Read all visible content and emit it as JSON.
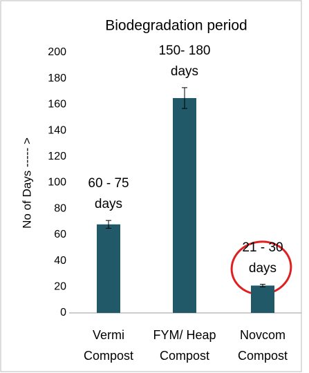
{
  "chart_data": {
    "type": "bar",
    "title": "Biodegradation period",
    "y_label": "No of Days ----- >",
    "categories": [
      "Vermi\nCompost",
      "FYM/ Heap\nCompost",
      "Novcom\nCompost"
    ],
    "values": [
      68,
      165,
      21
    ],
    "errors": [
      3,
      8,
      1
    ],
    "color": "#215968",
    "annotations": [
      "60 - 75\ndays",
      "150- 180\ndays",
      "21 - 30\ndays"
    ],
    "ylim": [
      0,
      200
    ],
    "yticks": [
      0,
      20,
      40,
      60,
      80,
      100,
      120,
      140,
      160,
      180,
      200
    ],
    "grid": false
  }
}
